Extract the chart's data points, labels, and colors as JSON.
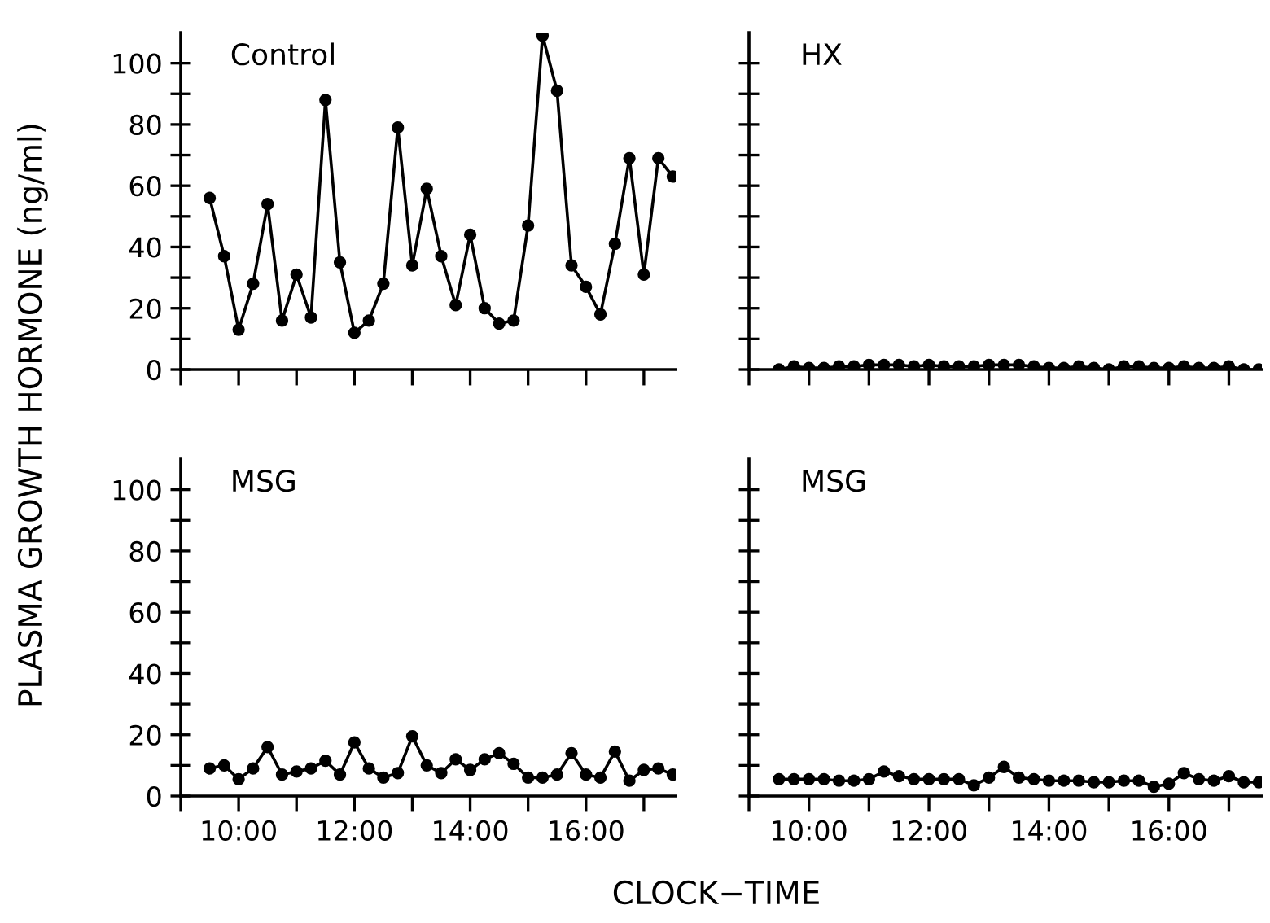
{
  "chart_data": [
    {
      "type": "line",
      "title": "Control",
      "ylabel": "PLASMA GROWTH HORMONE (ng/ml)",
      "tick_labels": "y",
      "marker": "circle",
      "grid": false,
      "legend": false,
      "x": [
        9.5,
        9.75,
        10,
        10.25,
        10.5,
        10.75,
        11,
        11.25,
        11.5,
        11.75,
        12,
        12.25,
        12.5,
        12.75,
        13,
        13.25,
        13.5,
        13.75,
        14,
        14.25,
        14.5,
        14.75,
        15,
        15.25,
        15.5,
        15.75,
        16,
        16.25,
        16.5,
        16.75,
        17,
        17.25,
        17.5
      ],
      "series": [
        {
          "color": "#000000",
          "values": [
            56,
            37,
            13,
            28,
            54,
            16,
            31,
            17,
            88,
            35,
            12,
            16,
            28,
            79,
            34,
            59,
            37,
            21,
            44,
            20,
            15,
            16,
            47,
            109,
            91,
            34,
            27,
            18,
            41,
            69,
            31,
            69,
            63
          ]
        }
      ],
      "xlim": [
        9,
        17.55
      ],
      "ylim": [
        0,
        110
      ],
      "xticks": [
        {
          "value": 9,
          "label": null
        },
        {
          "value": 10,
          "label": null
        },
        {
          "value": 11,
          "label": null
        },
        {
          "value": 12,
          "label": null
        },
        {
          "value": 13,
          "label": null
        },
        {
          "value": 14,
          "label": null
        },
        {
          "value": 15,
          "label": null
        },
        {
          "value": 16,
          "label": null
        },
        {
          "value": 17,
          "label": null
        }
      ],
      "yticks": [
        0,
        {
          "value": 10,
          "label": null
        },
        20,
        {
          "value": 30,
          "label": null
        },
        40,
        {
          "value": 50,
          "label": null
        },
        60,
        {
          "value": 70,
          "label": null
        },
        80,
        {
          "value": 90,
          "label": null
        },
        100
      ]
    },
    {
      "type": "line",
      "title": "HX",
      "tick_labels": false,
      "marker": "circle",
      "grid": false,
      "legend": false,
      "x": [
        9.5,
        9.75,
        10,
        10.25,
        10.5,
        10.75,
        11,
        11.25,
        11.5,
        11.75,
        12,
        12.25,
        12.5,
        12.75,
        13,
        13.25,
        13.5,
        13.75,
        14,
        14.25,
        14.5,
        14.75,
        15,
        15.25,
        15.5,
        15.75,
        16,
        16.25,
        16.5,
        16.75,
        17,
        17.25,
        17.5
      ],
      "series": [
        {
          "color": "#000000",
          "values": [
            0,
            1,
            0.5,
            0.5,
            1,
            1,
            1.5,
            1.5,
            1.5,
            1,
            1.5,
            1,
            1,
            1,
            1.5,
            1.5,
            1.5,
            1,
            0.5,
            0.5,
            1,
            0.5,
            0,
            1,
            1,
            0.5,
            0.5,
            1,
            0.5,
            0.5,
            1,
            0,
            0
          ]
        }
      ],
      "xlim": [
        9,
        17.55
      ],
      "ylim": [
        0,
        110
      ],
      "xticks": [
        {
          "value": 9,
          "label": null
        },
        {
          "value": 10,
          "label": null
        },
        {
          "value": 11,
          "label": null
        },
        {
          "value": 12,
          "label": null
        },
        {
          "value": 13,
          "label": null
        },
        {
          "value": 14,
          "label": null
        },
        {
          "value": 15,
          "label": null
        },
        {
          "value": 16,
          "label": null
        },
        {
          "value": 17,
          "label": null
        }
      ],
      "yticks": [
        {
          "value": 0,
          "label": null
        },
        {
          "value": 10,
          "label": null
        },
        {
          "value": 20,
          "label": null
        },
        {
          "value": 30,
          "label": null
        },
        {
          "value": 40,
          "label": null
        },
        {
          "value": 50,
          "label": null
        },
        {
          "value": 60,
          "label": null
        },
        {
          "value": 70,
          "label": null
        },
        {
          "value": 80,
          "label": null
        },
        {
          "value": 90,
          "label": null
        },
        {
          "value": 100,
          "label": null
        }
      ]
    },
    {
      "type": "line",
      "title": "MSG",
      "xlabel": "CLOCK−TIME",
      "marker": "circle",
      "grid": false,
      "legend": false,
      "x": [
        9.5,
        9.75,
        10,
        10.25,
        10.5,
        10.75,
        11,
        11.25,
        11.5,
        11.75,
        12,
        12.25,
        12.5,
        12.75,
        13,
        13.25,
        13.5,
        13.75,
        14,
        14.25,
        14.5,
        14.75,
        15,
        15.25,
        15.5,
        15.75,
        16,
        16.25,
        16.5,
        16.75,
        17,
        17.25,
        17.5
      ],
      "series": [
        {
          "color": "#000000",
          "values": [
            9,
            10,
            5.5,
            9,
            16,
            7,
            8,
            9,
            11.5,
            7,
            17.5,
            9,
            6,
            7.5,
            19.5,
            10,
            7.5,
            12,
            8.5,
            12,
            14,
            10.5,
            6,
            6,
            7,
            14,
            7,
            6,
            14.5,
            5,
            8.5,
            9,
            7
          ]
        }
      ],
      "xlim": [
        9,
        17.55
      ],
      "ylim": [
        0,
        110
      ],
      "xticks": [
        {
          "value": 9,
          "label": null
        },
        {
          "value": 10,
          "label": "10:00"
        },
        {
          "value": 11,
          "label": null
        },
        {
          "value": 12,
          "label": "12:00"
        },
        {
          "value": 13,
          "label": null
        },
        {
          "value": 14,
          "label": "14:00"
        },
        {
          "value": 15,
          "label": null
        },
        {
          "value": 16,
          "label": "16:00"
        },
        {
          "value": 17,
          "label": null
        }
      ],
      "yticks": [
        0,
        {
          "value": 10,
          "label": null
        },
        20,
        {
          "value": 30,
          "label": null
        },
        40,
        {
          "value": 50,
          "label": null
        },
        60,
        {
          "value": 70,
          "label": null
        },
        80,
        {
          "value": 90,
          "label": null
        },
        100
      ]
    },
    {
      "type": "line",
      "title": "MSG",
      "tick_labels": "x",
      "marker": "circle",
      "grid": false,
      "legend": false,
      "x": [
        9.5,
        9.75,
        10,
        10.25,
        10.5,
        10.75,
        11,
        11.25,
        11.5,
        11.75,
        12,
        12.25,
        12.5,
        12.75,
        13,
        13.25,
        13.5,
        13.75,
        14,
        14.25,
        14.5,
        14.75,
        15,
        15.25,
        15.5,
        15.75,
        16,
        16.25,
        16.5,
        16.75,
        17,
        17.25,
        17.5
      ],
      "series": [
        {
          "color": "#000000",
          "values": [
            5.5,
            5.5,
            5.5,
            5.5,
            5,
            5,
            5.5,
            8,
            6.5,
            5.5,
            5.5,
            5.5,
            5.5,
            3.5,
            6,
            9.5,
            6,
            5.5,
            5,
            5,
            5,
            4.5,
            4.5,
            5,
            5,
            3,
            4,
            7.5,
            5.5,
            5,
            6.5,
            4.5,
            4.5
          ]
        }
      ],
      "xlim": [
        9,
        17.55
      ],
      "ylim": [
        0,
        110
      ],
      "xticks": [
        {
          "value": 9,
          "label": null
        },
        {
          "value": 10,
          "label": "10:00"
        },
        {
          "value": 11,
          "label": null
        },
        {
          "value": 12,
          "label": "12:00"
        },
        {
          "value": 13,
          "label": null
        },
        {
          "value": 14,
          "label": "14:00"
        },
        {
          "value": 15,
          "label": null
        },
        {
          "value": 16,
          "label": "16:00"
        },
        {
          "value": 17,
          "label": null
        }
      ],
      "yticks": [
        {
          "value": 0,
          "label": null
        },
        {
          "value": 10,
          "label": null
        },
        {
          "value": 20,
          "label": null
        },
        {
          "value": 30,
          "label": null
        },
        {
          "value": 40,
          "label": null
        },
        {
          "value": 50,
          "label": null
        },
        {
          "value": 60,
          "label": null
        },
        {
          "value": 70,
          "label": null
        },
        {
          "value": 80,
          "label": null
        },
        {
          "value": 90,
          "label": null
        },
        {
          "value": 100,
          "label": null
        }
      ]
    }
  ]
}
